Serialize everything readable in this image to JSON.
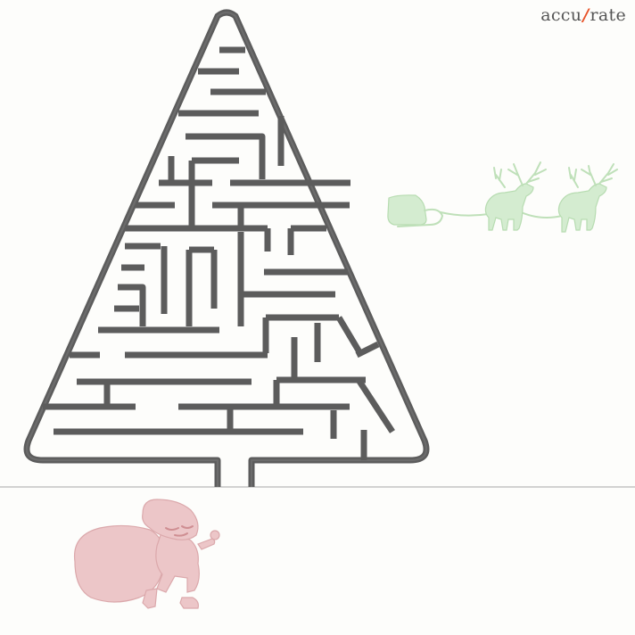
{
  "logo": {
    "left": "accu",
    "mark": "́",
    "right": "rate",
    "icon": "figure-mark-icon"
  },
  "colors": {
    "maze_wall": "#5c5c5c",
    "background": "#fdfdfb",
    "santa": "#ecc6c8",
    "reindeer": "#d4ecd0",
    "logo_accent": "#e8532a"
  }
}
